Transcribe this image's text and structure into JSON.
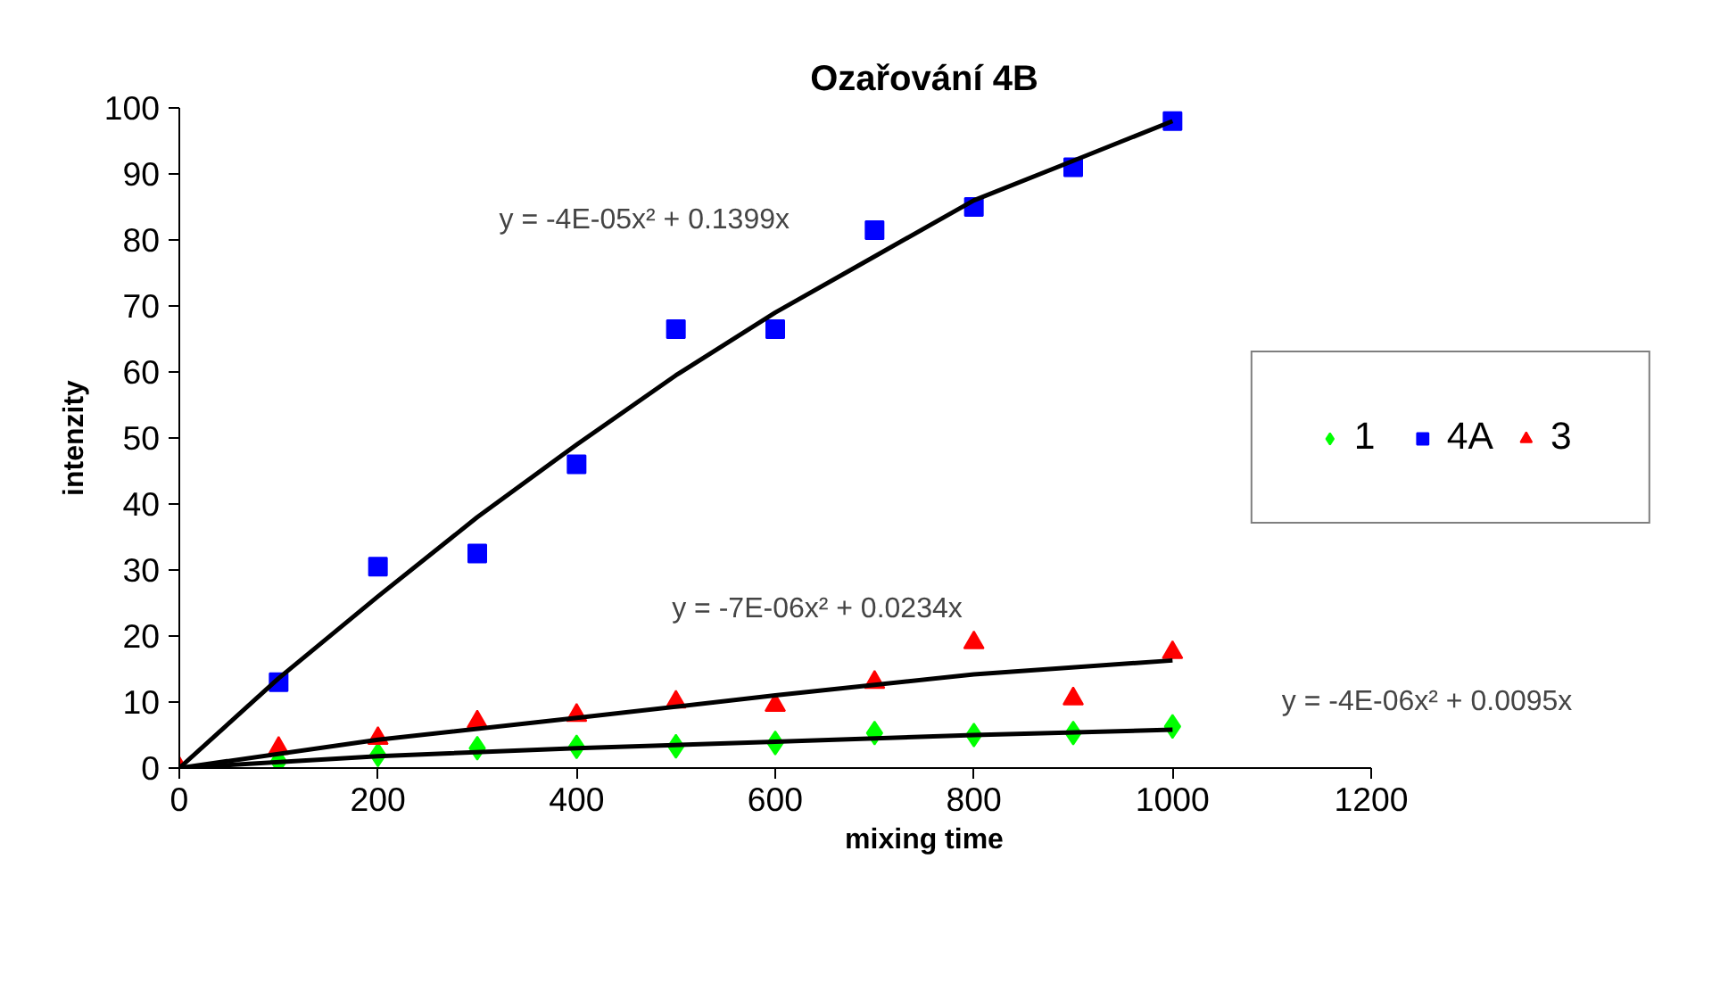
{
  "chart_data": {
    "type": "scatter",
    "title": "Ozařování 4B",
    "xlabel": "mixing time",
    "ylabel": "intenzity",
    "x": [
      0,
      100,
      200,
      300,
      400,
      500,
      600,
      700,
      800,
      900,
      1000
    ],
    "series": [
      {
        "name": "1",
        "color": "#00ff00",
        "marker": "diamond",
        "values": [
          null,
          1,
          2,
          3,
          3.2,
          3.3,
          3.8,
          5.3,
          5,
          5.3,
          6.3
        ]
      },
      {
        "name": "4A",
        "color": "#0000ff",
        "marker": "square",
        "values": [
          null,
          13,
          30.5,
          32.5,
          46,
          66.5,
          66.5,
          81.5,
          85,
          91,
          98
        ]
      },
      {
        "name": "3",
        "color": "#ff0000",
        "marker": "triangle",
        "values": [
          0,
          3,
          4.5,
          7,
          8,
          10,
          9.5,
          13,
          19,
          10.5,
          17.5
        ]
      },
      {
        "type": "line",
        "color": "#000000",
        "marker": "none",
        "x": [
          0,
          100,
          200,
          300,
          400,
          500,
          600,
          700,
          800,
          900,
          1000
        ],
        "values": [
          0,
          13.6,
          26,
          38,
          49,
          59.5,
          69,
          77.5,
          86,
          92,
          98
        ]
      },
      {
        "type": "line",
        "color": "#000000",
        "marker": "none",
        "x": [
          0,
          200,
          400,
          600,
          800,
          1000
        ],
        "values": [
          0,
          4.3,
          7.6,
          11,
          14.2,
          16.3
        ]
      },
      {
        "type": "line",
        "color": "#000000",
        "marker": "none",
        "x": [
          0,
          200,
          400,
          600,
          800,
          1000
        ],
        "values": [
          0,
          1.8,
          3,
          4,
          5,
          5.8
        ]
      }
    ],
    "annotations": [
      "y = -4E-05x² + 0.1399x",
      "y = -7E-06x² + 0.0234x",
      "y = -4E-06x² + 0.0095x"
    ],
    "xlim": [
      0,
      1200
    ],
    "xticks": [
      0,
      200,
      400,
      600,
      800,
      1000,
      1200
    ],
    "ylim": [
      0,
      100
    ],
    "yticks": [
      0,
      10,
      20,
      30,
      40,
      50,
      60,
      70,
      80,
      90,
      100
    ],
    "grid": false,
    "legend": "right",
    "line_style": "solid"
  }
}
